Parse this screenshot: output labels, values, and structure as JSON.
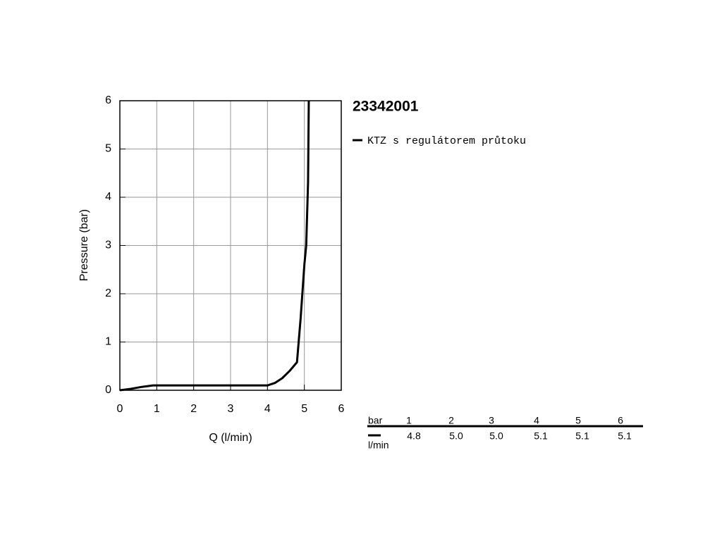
{
  "chart_data": {
    "type": "line",
    "title": "23342001",
    "x_label": "Q (l/min)",
    "y_label": "Pressure (bar)",
    "x": [
      0,
      0.3,
      0.6,
      0.9,
      2,
      3,
      4,
      4.2,
      4.4,
      4.6,
      4.8,
      4.9,
      5.0,
      5.05,
      5.1,
      5.12
    ],
    "series": [
      {
        "name": "KTZ s regulátorem průtoku",
        "color": "#000000",
        "values": [
          0,
          0.03,
          0.07,
          0.1,
          0.1,
          0.1,
          0.1,
          0.15,
          0.25,
          0.4,
          0.58,
          1.5,
          2.6,
          3.0,
          4.3,
          6
        ]
      }
    ],
    "xlim": [
      0,
      6
    ],
    "ylim": [
      0,
      6
    ],
    "xticks": [
      0,
      1,
      2,
      3,
      4,
      5,
      6
    ],
    "yticks": [
      0,
      1,
      2,
      3,
      4,
      5,
      6
    ],
    "grid": true
  },
  "table": {
    "header": [
      "bar",
      "1",
      "2",
      "3",
      "4",
      "5",
      "6"
    ],
    "unit": "l/min",
    "row": [
      "4.8",
      "5.0",
      "5.0",
      "5.1",
      "5.1",
      "5.1"
    ]
  }
}
